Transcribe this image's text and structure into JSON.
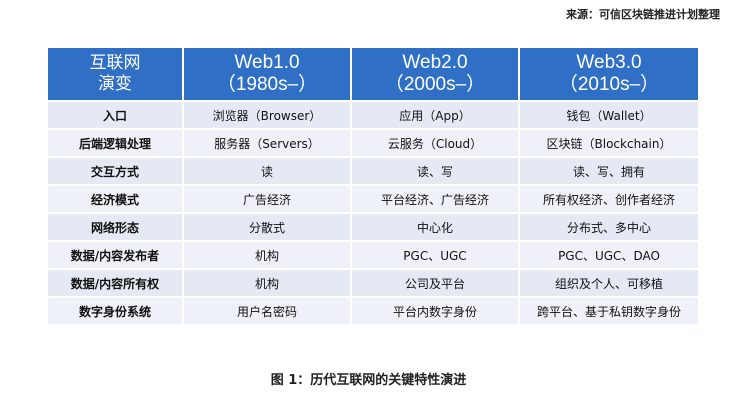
{
  "source_note": "来源：可信区块链推进计划整理",
  "table": {
    "headers": [
      {
        "line1": "互联网",
        "line2": "演变"
      },
      {
        "line1": "Web1.0",
        "line2": "（1980s–）"
      },
      {
        "line1": "Web2.0",
        "line2": "（2000s–）"
      },
      {
        "line1": "Web3.0",
        "line2": "（2010s–）"
      }
    ],
    "rows": [
      [
        "入口",
        "浏览器（Browser）",
        "应用（App）",
        "钱包（Wallet）"
      ],
      [
        "后端逻辑处理",
        "服务器（Servers）",
        "云服务（Cloud）",
        "区块链（Blockchain）"
      ],
      [
        "交互方式",
        "读",
        "读、写",
        "读、写、拥有"
      ],
      [
        "经济模式",
        "广告经济",
        "平台经济、广告经济",
        "所有权经济、创作者经济"
      ],
      [
        "网络形态",
        "分散式",
        "中心化",
        "分布式、多中心"
      ],
      [
        "数据/内容发布者",
        "机构",
        "PGC、UGC",
        "PGC、UGC、DAO"
      ],
      [
        "数据/内容所有权",
        "机构",
        "公司及平台",
        "组织及个人、可移植"
      ],
      [
        "数字身份系统",
        "用户名密码",
        "平台内数字身份",
        "跨平台、基于私钥数字身份"
      ]
    ]
  },
  "caption": "图 1：历代互联网的关键特性演进",
  "colors": {
    "header_bg": "#2f6fc6",
    "row_odd_bg": "#e4e9f3",
    "row_even_bg": "#eef1f7"
  }
}
